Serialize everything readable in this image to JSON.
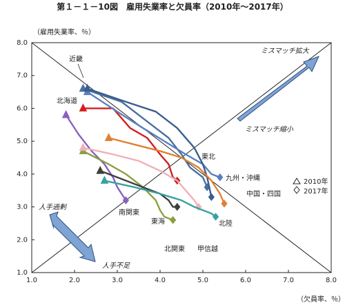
{
  "chart_data": {
    "type": "line",
    "title": "第１－１－10図　雇用失業率と欠員率（2010年～2017年）",
    "ylabel": "（雇用失業率、％）",
    "xlabel": "（欠員率、％）",
    "xlim": [
      1.0,
      8.0
    ],
    "ylim": [
      1.0,
      8.0
    ],
    "xticks": [
      "1.0",
      "2.0",
      "3.0",
      "4.0",
      "5.0",
      "6.0",
      "7.0",
      "8.0"
    ],
    "yticks": [
      "1.0",
      "2.0",
      "3.0",
      "4.0",
      "5.0",
      "6.0",
      "7.0",
      "8.0"
    ],
    "grid": false,
    "series": [
      {
        "name": "近畿",
        "color": "#4a6fa0",
        "start_marker": "triangle",
        "end_marker": "diamond",
        "x": [
          2.2,
          3.1,
          3.7,
          4.2,
          4.5,
          4.7,
          5.0,
          5.1
        ],
        "y": [
          6.6,
          6.2,
          5.6,
          5.1,
          4.6,
          4.2,
          3.9,
          3.6
        ]
      },
      {
        "name": "北海道",
        "color": "#d02020",
        "start_marker": "triangle",
        "end_marker": "diamond",
        "x": [
          2.2,
          2.9,
          3.3,
          3.7,
          4.0,
          4.2,
          4.3,
          4.4
        ],
        "y": [
          6.0,
          6.0,
          5.4,
          5.1,
          4.6,
          4.3,
          3.9,
          3.8
        ]
      },
      {
        "name": "九州・沖縄",
        "color": "#5a7fbf",
        "start_marker": "triangle",
        "end_marker": "diamond",
        "x": [
          2.3,
          3.0,
          3.6,
          4.1,
          4.6,
          5.0,
          5.2,
          5.4
        ],
        "y": [
          6.5,
          5.9,
          5.4,
          5.0,
          4.6,
          4.3,
          4.0,
          3.9
        ]
      },
      {
        "name": "東北",
        "color": "#3a5f8f",
        "start_marker": "triangle",
        "end_marker": "diamond",
        "x": [
          2.3,
          3.2,
          3.9,
          4.4,
          4.8,
          5.0,
          5.1,
          5.2
        ],
        "y": [
          6.6,
          6.2,
          5.9,
          5.4,
          4.8,
          4.3,
          3.9,
          3.3
        ]
      },
      {
        "name": "中国・四国",
        "color": "#e08030",
        "start_marker": "triangle",
        "end_marker": "diamond",
        "x": [
          2.8,
          3.4,
          4.0,
          4.5,
          4.9,
          5.2,
          5.4,
          5.5
        ],
        "y": [
          5.1,
          4.9,
          4.7,
          4.5,
          4.2,
          3.8,
          3.4,
          3.1
        ]
      },
      {
        "name": "南関東",
        "color": "#8a5fc0",
        "start_marker": "triangle",
        "end_marker": "diamond",
        "x": [
          1.8,
          2.1,
          2.4,
          2.7,
          2.9,
          3.0,
          3.1,
          3.2
        ],
        "y": [
          5.8,
          5.2,
          4.7,
          4.3,
          3.9,
          3.6,
          3.4,
          3.2
        ]
      },
      {
        "name": "東海",
        "color": "#8aa040",
        "start_marker": "triangle",
        "end_marker": "diamond",
        "x": [
          2.2,
          2.8,
          3.2,
          3.6,
          3.9,
          4.0,
          4.1,
          4.3
        ],
        "y": [
          4.7,
          4.3,
          4.0,
          3.6,
          3.2,
          2.9,
          2.7,
          2.6
        ]
      },
      {
        "name": "北関東",
        "color": "#3f3f3f",
        "start_marker": "triangle",
        "end_marker": "diamond",
        "x": [
          2.6,
          3.2,
          3.6,
          4.0,
          4.2,
          4.3,
          4.4,
          4.4
        ],
        "y": [
          4.1,
          3.8,
          3.6,
          3.4,
          3.2,
          3.0,
          3.0,
          3.0
        ]
      },
      {
        "name": "甲信越",
        "color": "#f0b0b8",
        "start_marker": "triangle",
        "end_marker": "diamond",
        "x": [
          2.2,
          2.9,
          3.5,
          4.0,
          4.4,
          4.6,
          4.8,
          4.9
        ],
        "y": [
          4.8,
          4.6,
          4.4,
          4.1,
          3.8,
          3.5,
          3.2,
          3.0
        ]
      },
      {
        "name": "北陸",
        "color": "#3aa0a0",
        "start_marker": "triangle",
        "end_marker": "diamond",
        "x": [
          2.7,
          3.4,
          4.0,
          4.5,
          4.8,
          5.0,
          5.2,
          5.3
        ],
        "y": [
          3.8,
          3.6,
          3.4,
          3.2,
          3.0,
          2.9,
          2.8,
          2.7
        ]
      }
    ],
    "legend": [
      {
        "marker": "triangle",
        "label": "2010年"
      },
      {
        "marker": "diamond",
        "label": "2017年"
      }
    ],
    "annotations": {
      "mismatch_expand": "ミスマッチ拡大",
      "mismatch_shrink": "ミスマッチ縮小",
      "labor_surplus": "人手過剰",
      "labor_shortage": "人手不足"
    }
  }
}
